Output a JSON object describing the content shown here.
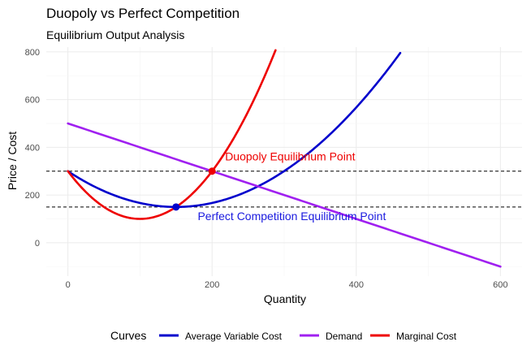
{
  "chart_data": {
    "type": "line",
    "title": "Duopoly vs Perfect Competition",
    "subtitle": "Equilibrium Output Analysis",
    "xlabel": "Quantity",
    "ylabel": "Price / Cost",
    "xlim": [
      -30,
      630
    ],
    "ylim": [
      -140,
      820
    ],
    "x_ticks": [
      0,
      200,
      400,
      600
    ],
    "y_ticks": [
      0,
      200,
      400,
      600,
      800
    ],
    "grid": true,
    "legend": {
      "title": "Curves",
      "position": "bottom"
    },
    "series": [
      {
        "name": "Average Variable Cost",
        "color": "#0000cc",
        "function": "avc",
        "params": {
          "a": 0.00667,
          "b": -2,
          "c": 300
        },
        "x_range": [
          0,
          461
        ]
      },
      {
        "name": "Demand",
        "color": "#a020f0",
        "function": "linear",
        "params": {
          "intercept": 500,
          "slope": -1
        },
        "x_range": [
          0,
          600
        ]
      },
      {
        "name": "Marginal Cost",
        "color": "#ee0000",
        "function": "mc",
        "params": {
          "a": 0.02,
          "b": -4,
          "c": 300
        },
        "x_range": [
          0,
          288
        ]
      }
    ],
    "hlines": [
      {
        "y": 300,
        "style": "dashed",
        "color": "#000000"
      },
      {
        "y": 150,
        "style": "dashed",
        "color": "#000000"
      }
    ],
    "points": [
      {
        "x": 200,
        "y": 300,
        "color": "#ee0000"
      },
      {
        "x": 150,
        "y": 150,
        "color": "#0000cc"
      }
    ],
    "annotations": [
      {
        "text": "Duopoly Equilibrium Point",
        "x": 218,
        "y": 345,
        "color": "#ee0000"
      },
      {
        "text": "Perfect Competition Equilibrium Point",
        "x": 180,
        "y": 95,
        "color": "#1a1adf"
      }
    ]
  }
}
